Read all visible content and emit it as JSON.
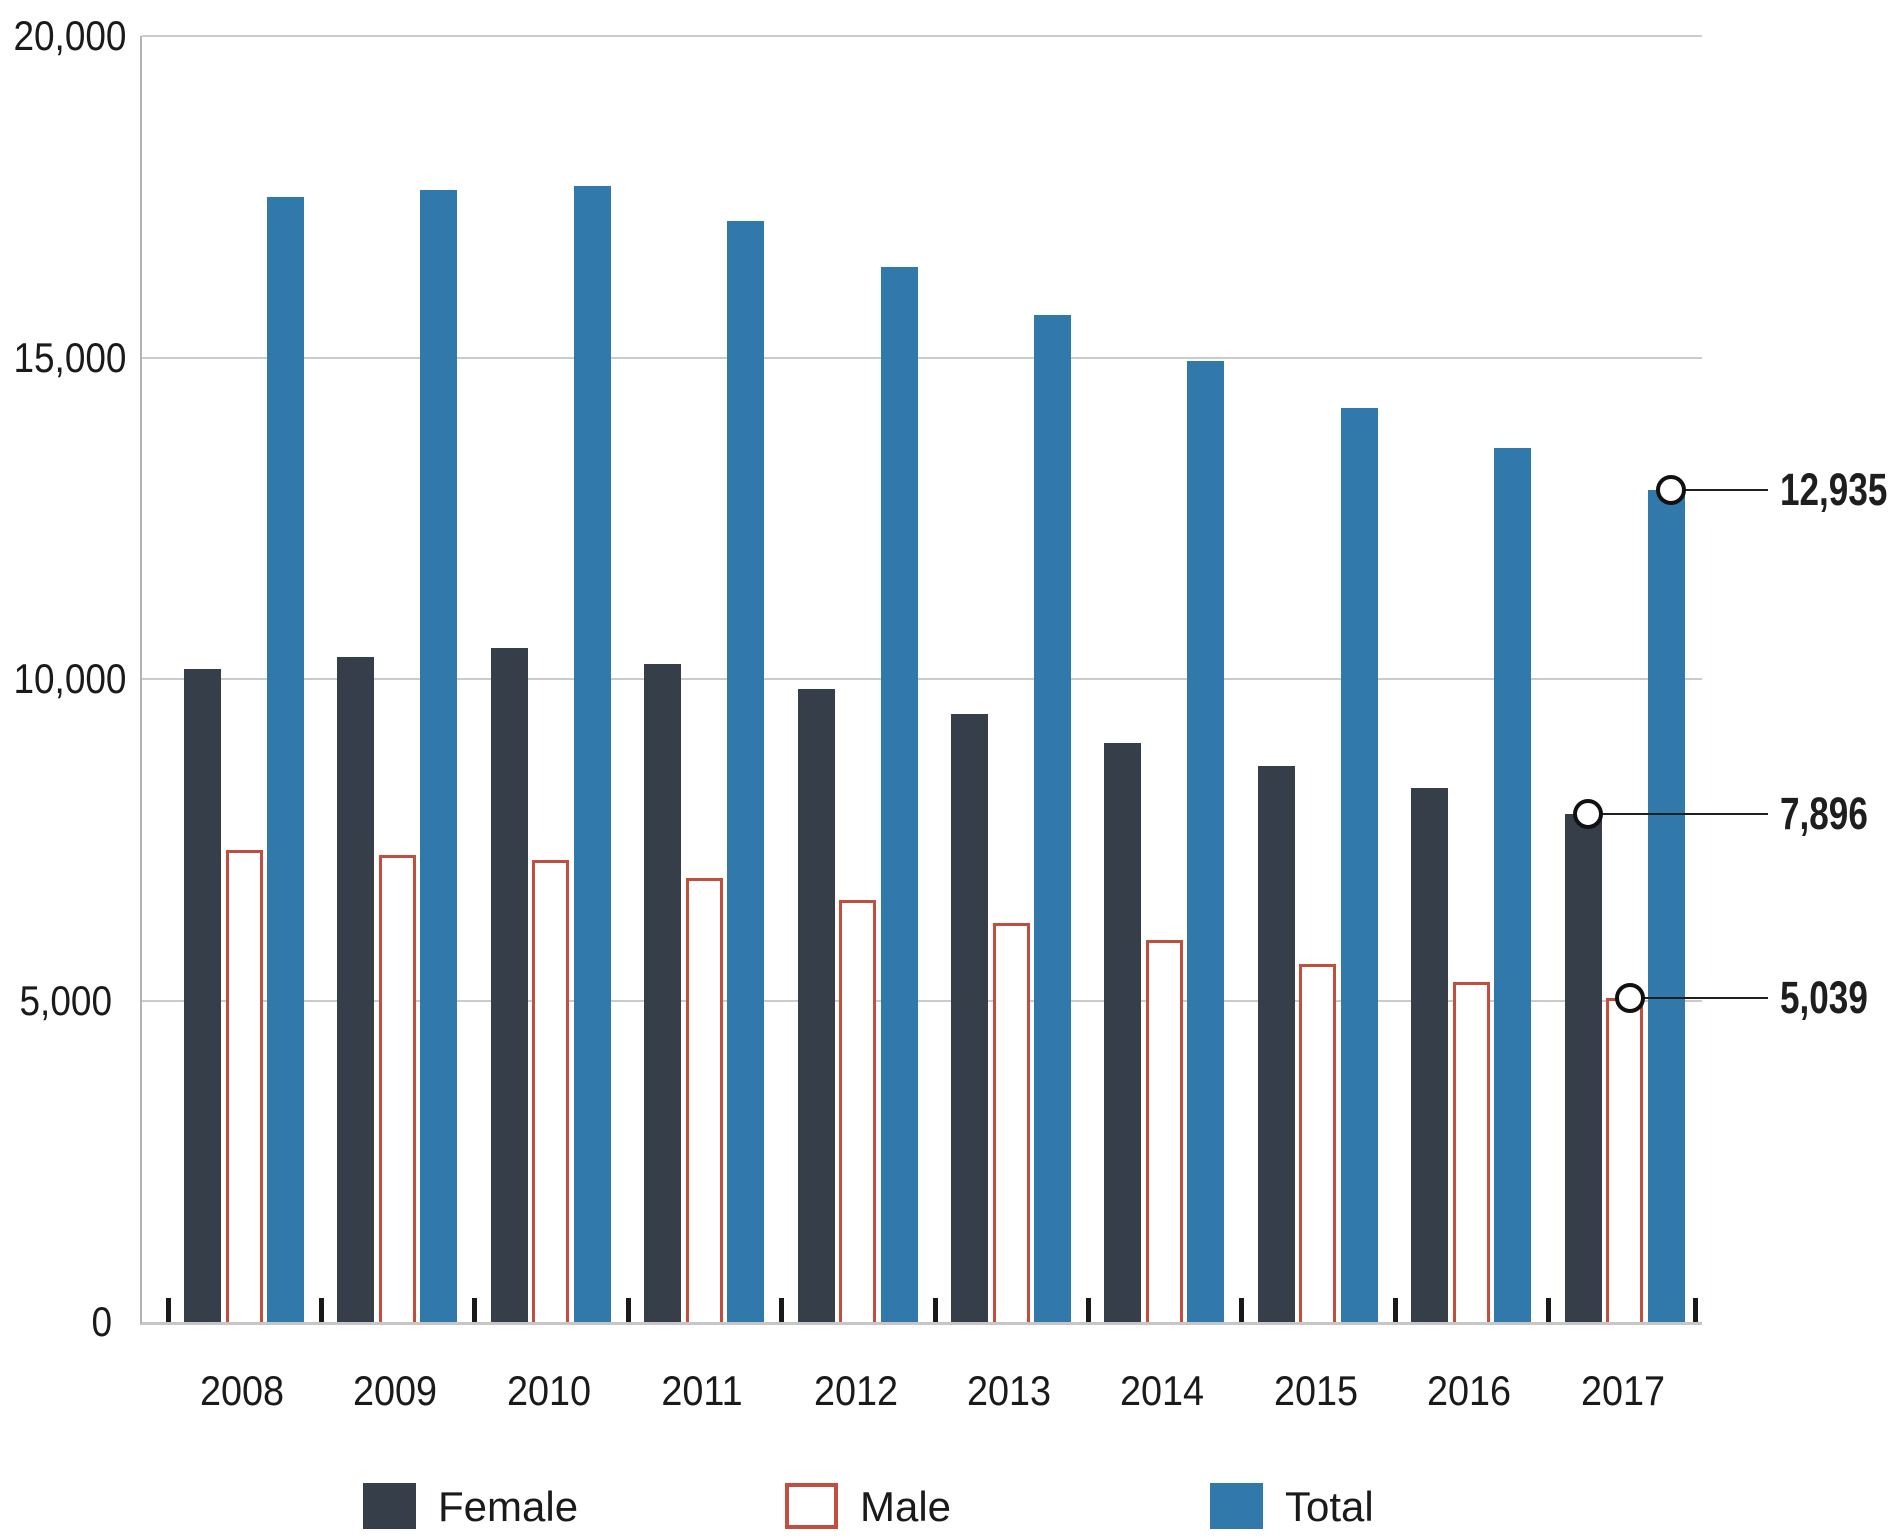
{
  "chart_data": {
    "type": "bar",
    "categories": [
      "2008",
      "2009",
      "2010",
      "2011",
      "2012",
      "2013",
      "2014",
      "2015",
      "2016",
      "2017"
    ],
    "series": [
      {
        "name": "Female",
        "color": "#353e49",
        "style": "solid",
        "values": [
          10150,
          10340,
          10480,
          10230,
          9840,
          9450,
          9010,
          8650,
          8300,
          7896
        ]
      },
      {
        "name": "Male",
        "color": "#c24e3d",
        "style": "outline",
        "values": [
          7340,
          7260,
          7180,
          6900,
          6560,
          6210,
          5940,
          5570,
          5290,
          5039
        ]
      },
      {
        "name": "Total",
        "color": "#3279ab",
        "style": "solid",
        "values": [
          17490,
          17600,
          17660,
          17130,
          16400,
          15660,
          14950,
          14220,
          13590,
          12935
        ]
      }
    ],
    "title": "",
    "xlabel": "",
    "ylabel": "",
    "ylim": [
      0,
      20000
    ],
    "yticks": [
      0,
      5000,
      10000,
      15000,
      20000
    ],
    "ytick_labels": [
      "0",
      "5,000",
      "10,000",
      "15,000",
      "20,000"
    ],
    "grid": "horizontal",
    "legend_position": "bottom",
    "end_labels": [
      {
        "series": "Total",
        "category": "2017",
        "value": 12935,
        "label": "12,935"
      },
      {
        "series": "Female",
        "category": "2017",
        "value": 7896,
        "label": "7,896"
      },
      {
        "series": "Male",
        "category": "2017",
        "value": 5039,
        "label": "5,039"
      }
    ]
  },
  "colors": {
    "female_bar": "#353e49",
    "male_outline": "#c24e3d",
    "total_bar": "#3279ab",
    "gridline": "#cbcbcb",
    "axis_line": "#b3b3b3",
    "text": "#1a1a1a",
    "annotation_line": "#1f1f1f"
  },
  "legend": {
    "items": [
      {
        "label": "Female"
      },
      {
        "label": "Male"
      },
      {
        "label": "Total"
      }
    ]
  }
}
